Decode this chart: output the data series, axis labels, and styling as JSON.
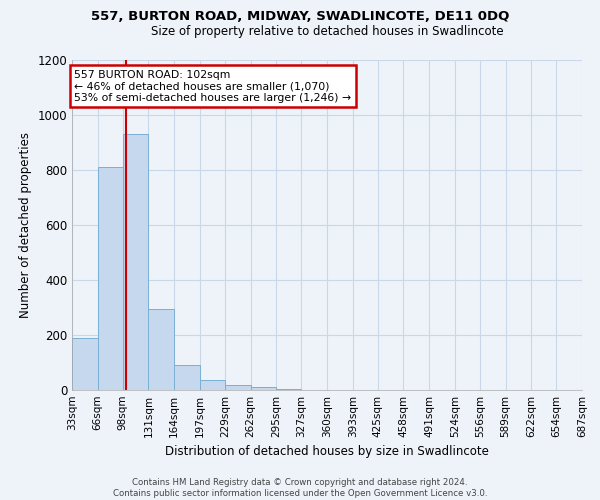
{
  "title": "557, BURTON ROAD, MIDWAY, SWADLINCOTE, DE11 0DQ",
  "subtitle": "Size of property relative to detached houses in Swadlincote",
  "xlabel": "Distribution of detached houses by size in Swadlincote",
  "ylabel": "Number of detached properties",
  "bin_edges": [
    33,
    66,
    98,
    131,
    164,
    197,
    229,
    262,
    295,
    327,
    360,
    393,
    425,
    458,
    491,
    524,
    556,
    589,
    622,
    654,
    687
  ],
  "bar_heights": [
    190,
    810,
    930,
    295,
    90,
    35,
    20,
    10,
    2,
    0,
    0,
    0,
    0,
    0,
    0,
    0,
    0,
    0,
    0,
    0
  ],
  "bar_color": "#c5d8ee",
  "bar_edge_color": "#7aafd4",
  "grid_color": "#c8d8e8",
  "annotation_box_color": "#ffffff",
  "annotation_border_color": "#cc0000",
  "property_line_color": "#cc0000",
  "property_sqm": 102,
  "annotation_line1": "557 BURTON ROAD: 102sqm",
  "annotation_line2": "← 46% of detached houses are smaller (1,070)",
  "annotation_line3": "53% of semi-detached houses are larger (1,246) →",
  "ylim": [
    0,
    1200
  ],
  "yticks": [
    0,
    200,
    400,
    600,
    800,
    1000,
    1200
  ],
  "footer_line1": "Contains HM Land Registry data © Crown copyright and database right 2024.",
  "footer_line2": "Contains public sector information licensed under the Open Government Licence v3.0.",
  "background_color": "#eef3fa",
  "plot_bg_color": "#eef3fa"
}
